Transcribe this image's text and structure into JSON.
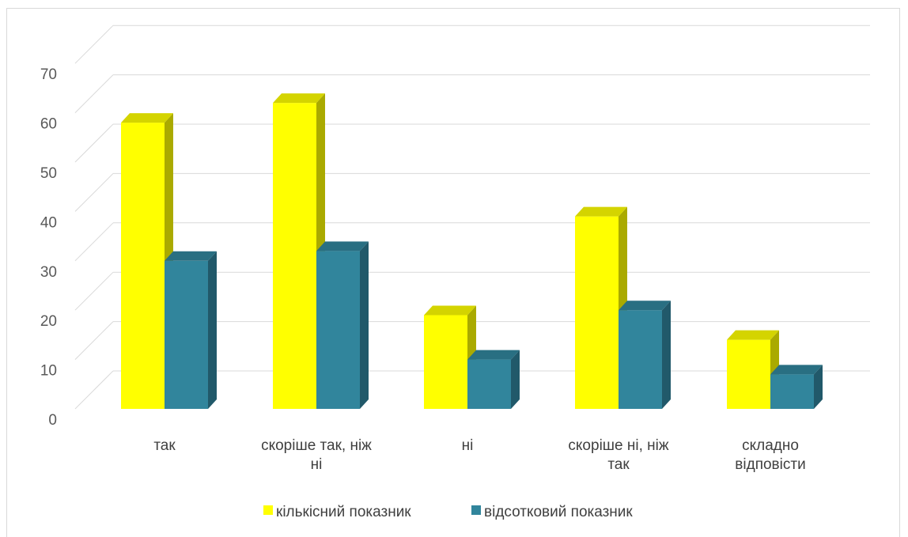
{
  "chart_data": {
    "type": "bar",
    "subtype": "3d-clustered-column",
    "categories": [
      [
        "так"
      ],
      [
        "скоріше так, ніж",
        "ні"
      ],
      [
        "ні"
      ],
      [
        "скоріше ні, ніж",
        "так"
      ],
      [
        "складно",
        "відповісти"
      ]
    ],
    "series": [
      {
        "name": "кількісний показник",
        "values": [
          58,
          62,
          19,
          39,
          14
        ]
      },
      {
        "name": "відсотковий показник",
        "values": [
          30,
          32,
          10,
          20,
          7
        ]
      }
    ],
    "ylim": [
      0,
      70
    ],
    "yticks": [
      0,
      10,
      20,
      30,
      40,
      50,
      60,
      70
    ],
    "grid": true,
    "legend_position": "bottom",
    "colors": {
      "series": [
        "#FFFF00",
        "#31859C"
      ],
      "series_side": [
        "#AAAA00",
        "#21596A"
      ],
      "series_top": [
        "#D4D400",
        "#296F82"
      ],
      "grid": "#d9d9d9"
    }
  }
}
